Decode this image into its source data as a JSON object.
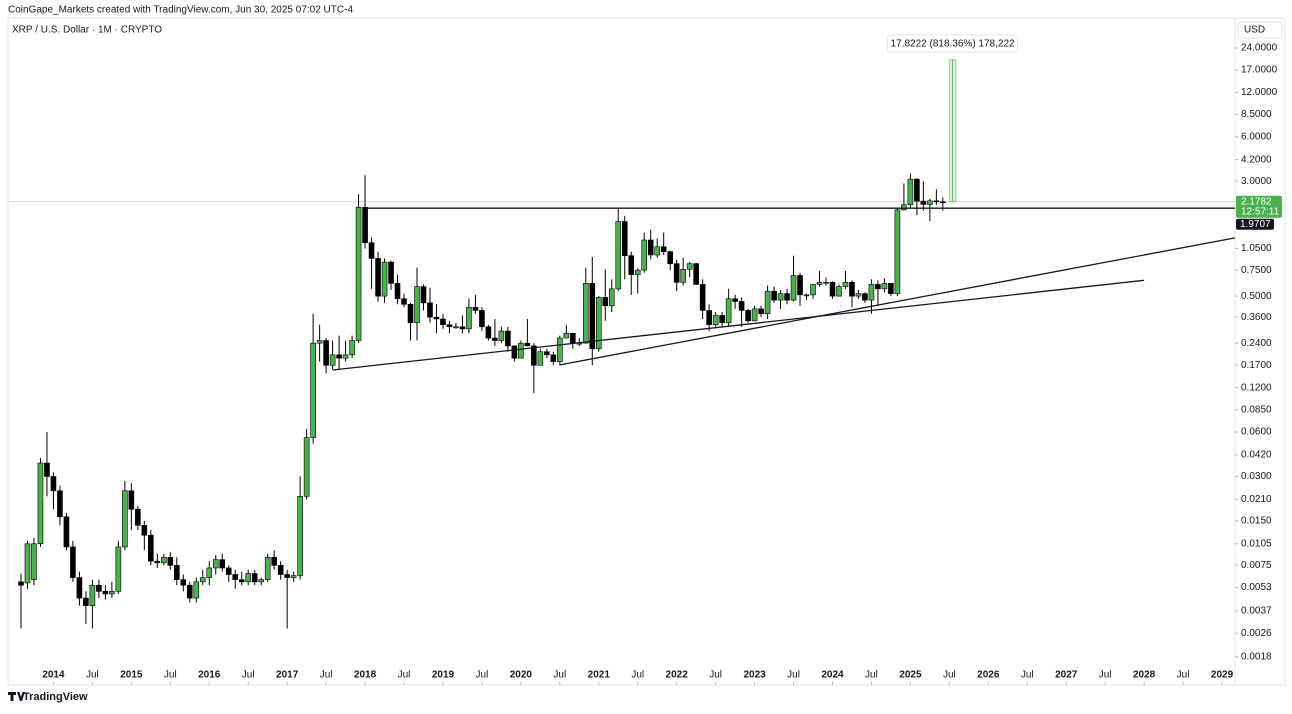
{
  "credit": "CoinGape_Markets created with TradingView.com, Jun 30, 2025 07:02 UTC-4",
  "footer": "TradingView",
  "chart_data": {
    "type": "candlestick",
    "title": "XRP / U.S. Dollar · 1M · CRYPTO",
    "y_label": "USD",
    "log_scale": true,
    "up_color": "#4caf50",
    "down_color": "#000000",
    "xlim": [
      "2013-06",
      "2029-03"
    ],
    "ylim": [
      0.00116,
      38.3
    ],
    "xticks": [
      {
        "value": "2014-01",
        "label": "2014"
      },
      {
        "value": "2014-07",
        "label": "Jul"
      },
      {
        "value": "2015-01",
        "label": "2015"
      },
      {
        "value": "2015-07",
        "label": "Jul"
      },
      {
        "value": "2016-01",
        "label": "2016"
      },
      {
        "value": "2016-07",
        "label": "Jul"
      },
      {
        "value": "2017-01",
        "label": "2017"
      },
      {
        "value": "2017-07",
        "label": "Jul"
      },
      {
        "value": "2018-01",
        "label": "2018"
      },
      {
        "value": "2018-07",
        "label": "Jul"
      },
      {
        "value": "2019-01",
        "label": "2019"
      },
      {
        "value": "2019-07",
        "label": "Jul"
      },
      {
        "value": "2020-01",
        "label": "2020"
      },
      {
        "value": "2020-07",
        "label": "Jul"
      },
      {
        "value": "2021-01",
        "label": "2021"
      },
      {
        "value": "2021-07",
        "label": "Jul"
      },
      {
        "value": "2022-01",
        "label": "2022"
      },
      {
        "value": "2022-07",
        "label": "Jul"
      },
      {
        "value": "2023-01",
        "label": "2023"
      },
      {
        "value": "2023-07",
        "label": "Jul"
      },
      {
        "value": "2024-01",
        "label": "2024"
      },
      {
        "value": "2024-07",
        "label": "Jul"
      },
      {
        "value": "2025-01",
        "label": "2025"
      },
      {
        "value": "2025-07",
        "label": "Jul"
      },
      {
        "value": "2026-01",
        "label": "2026"
      },
      {
        "value": "2026-07",
        "label": "Jul"
      },
      {
        "value": "2027-01",
        "label": "2027"
      },
      {
        "value": "2027-07",
        "label": "Jul"
      },
      {
        "value": "2028-01",
        "label": "2028"
      },
      {
        "value": "2028-07",
        "label": "Jul"
      },
      {
        "value": "2029-01",
        "label": "2029"
      }
    ],
    "yticks": [
      {
        "value": 24,
        "label": "24.0000"
      },
      {
        "value": 17,
        "label": "17.0000"
      },
      {
        "value": 12,
        "label": "12.0000"
      },
      {
        "value": 8.5,
        "label": "8.5000"
      },
      {
        "value": 6,
        "label": "6.0000"
      },
      {
        "value": 4.2,
        "label": "4.2000"
      },
      {
        "value": 3,
        "label": "3.0000"
      },
      {
        "value": 1.05,
        "label": "1.0500"
      },
      {
        "value": 0.75,
        "label": "0.7500"
      },
      {
        "value": 0.5,
        "label": "0.5000"
      },
      {
        "value": 0.36,
        "label": "0.3600"
      },
      {
        "value": 0.24,
        "label": "0.2400"
      },
      {
        "value": 0.17,
        "label": "0.1700"
      },
      {
        "value": 0.12,
        "label": "0.1200"
      },
      {
        "value": 0.085,
        "label": "0.0850"
      },
      {
        "value": 0.06,
        "label": "0.0600"
      },
      {
        "value": 0.042,
        "label": "0.0420"
      },
      {
        "value": 0.03,
        "label": "0.0300"
      },
      {
        "value": 0.021,
        "label": "0.0210"
      },
      {
        "value": 0.015,
        "label": "0.0150"
      },
      {
        "value": 0.0105,
        "label": "0.0105"
      },
      {
        "value": 0.0075,
        "label": "0.0075"
      },
      {
        "value": 0.0053,
        "label": "0.0053"
      },
      {
        "value": 0.0037,
        "label": "0.0037"
      },
      {
        "value": 0.0026,
        "label": "0.0026"
      },
      {
        "value": 0.0018,
        "label": "0.0018"
      }
    ],
    "last_price": 2.1782,
    "countdown": "12:57:11",
    "level": 1.9707,
    "trend_lines": [
      {
        "x": [
          "2018-01",
          "2029-03"
        ],
        "y": [
          1.9707,
          1.9707
        ]
      },
      {
        "x": [
          "2017-08",
          "2028-01"
        ],
        "y": [
          0.158,
          0.64
        ]
      },
      {
        "x": [
          "2020-07",
          "2029-03"
        ],
        "y": [
          0.171,
          1.24
        ]
      }
    ],
    "measure": {
      "label": "17.8222 (818.36%) 178,222",
      "x": [
        "2025-07",
        "2025-08"
      ],
      "y": [
        2.1782,
        20
      ]
    },
    "x": [
      "2013-08",
      "2013-09",
      "2013-10",
      "2013-11",
      "2013-12",
      "2014-01",
      "2014-02",
      "2014-03",
      "2014-04",
      "2014-05",
      "2014-06",
      "2014-07",
      "2014-08",
      "2014-09",
      "2014-10",
      "2014-11",
      "2014-12",
      "2015-01",
      "2015-02",
      "2015-03",
      "2015-04",
      "2015-05",
      "2015-06",
      "2015-07",
      "2015-08",
      "2015-09",
      "2015-10",
      "2015-11",
      "2015-12",
      "2016-01",
      "2016-02",
      "2016-03",
      "2016-04",
      "2016-05",
      "2016-06",
      "2016-07",
      "2016-08",
      "2016-09",
      "2016-10",
      "2016-11",
      "2016-12",
      "2017-01",
      "2017-02",
      "2017-03",
      "2017-04",
      "2017-05",
      "2017-06",
      "2017-07",
      "2017-08",
      "2017-09",
      "2017-10",
      "2017-11",
      "2017-12",
      "2018-01",
      "2018-02",
      "2018-03",
      "2018-04",
      "2018-05",
      "2018-06",
      "2018-07",
      "2018-08",
      "2018-09",
      "2018-10",
      "2018-11",
      "2018-12",
      "2019-01",
      "2019-02",
      "2019-03",
      "2019-04",
      "2019-05",
      "2019-06",
      "2019-07",
      "2019-08",
      "2019-09",
      "2019-10",
      "2019-11",
      "2019-12",
      "2020-01",
      "2020-02",
      "2020-03",
      "2020-04",
      "2020-05",
      "2020-06",
      "2020-07",
      "2020-08",
      "2020-09",
      "2020-10",
      "2020-11",
      "2020-12",
      "2021-01",
      "2021-02",
      "2021-03",
      "2021-04",
      "2021-05",
      "2021-06",
      "2021-07",
      "2021-08",
      "2021-09",
      "2021-10",
      "2021-11",
      "2021-12",
      "2022-01",
      "2022-02",
      "2022-03",
      "2022-04",
      "2022-05",
      "2022-06",
      "2022-07",
      "2022-08",
      "2022-09",
      "2022-10",
      "2022-11",
      "2022-12",
      "2023-01",
      "2023-02",
      "2023-03",
      "2023-04",
      "2023-05",
      "2023-06",
      "2023-07",
      "2023-08",
      "2023-09",
      "2023-10",
      "2023-11",
      "2023-12",
      "2024-01",
      "2024-02",
      "2024-03",
      "2024-04",
      "2024-05",
      "2024-06",
      "2024-07",
      "2024-08",
      "2024-09",
      "2024-10",
      "2024-11",
      "2024-12",
      "2025-01",
      "2025-02",
      "2025-03",
      "2025-04",
      "2025-05",
      "2025-06"
    ],
    "ohlc": [
      [
        0.0058,
        0.0066,
        0.0028,
        0.0055
      ],
      [
        0.0057,
        0.011,
        0.0052,
        0.0105
      ],
      [
        0.006,
        0.0115,
        0.0055,
        0.0105
      ],
      [
        0.0105,
        0.04,
        0.01,
        0.037
      ],
      [
        0.037,
        0.06,
        0.022,
        0.03
      ],
      [
        0.03,
        0.032,
        0.018,
        0.024
      ],
      [
        0.024,
        0.026,
        0.014,
        0.016
      ],
      [
        0.016,
        0.017,
        0.0095,
        0.01
      ],
      [
        0.01,
        0.011,
        0.0058,
        0.0062
      ],
      [
        0.0062,
        0.0068,
        0.004,
        0.0045
      ],
      [
        0.0045,
        0.005,
        0.003,
        0.004
      ],
      [
        0.004,
        0.006,
        0.0028,
        0.0055
      ],
      [
        0.0055,
        0.006,
        0.0045,
        0.005
      ],
      [
        0.005,
        0.0055,
        0.0044,
        0.0048
      ],
      [
        0.0048,
        0.0058,
        0.0045,
        0.005
      ],
      [
        0.005,
        0.011,
        0.0048,
        0.01
      ],
      [
        0.01,
        0.028,
        0.0095,
        0.024
      ],
      [
        0.024,
        0.027,
        0.013,
        0.018
      ],
      [
        0.018,
        0.019,
        0.013,
        0.014
      ],
      [
        0.014,
        0.015,
        0.0095,
        0.012
      ],
      [
        0.012,
        0.013,
        0.0075,
        0.008
      ],
      [
        0.008,
        0.009,
        0.0072,
        0.0078
      ],
      [
        0.0078,
        0.009,
        0.0075,
        0.0085
      ],
      [
        0.0085,
        0.0092,
        0.007,
        0.0075
      ],
      [
        0.0075,
        0.0085,
        0.0055,
        0.006
      ],
      [
        0.006,
        0.0065,
        0.005,
        0.0055
      ],
      [
        0.0055,
        0.0058,
        0.0042,
        0.0045
      ],
      [
        0.0045,
        0.0062,
        0.0042,
        0.0058
      ],
      [
        0.0058,
        0.007,
        0.0055,
        0.0062
      ],
      [
        0.0062,
        0.008,
        0.0055,
        0.0072
      ],
      [
        0.0072,
        0.0088,
        0.0065,
        0.0082
      ],
      [
        0.0082,
        0.009,
        0.0068,
        0.0072
      ],
      [
        0.0072,
        0.0075,
        0.0058,
        0.0065
      ],
      [
        0.0065,
        0.007,
        0.0052,
        0.006
      ],
      [
        0.006,
        0.0068,
        0.0055,
        0.0058
      ],
      [
        0.0058,
        0.007,
        0.0055,
        0.0066
      ],
      [
        0.0066,
        0.007,
        0.0055,
        0.0058
      ],
      [
        0.0058,
        0.0062,
        0.0055,
        0.006
      ],
      [
        0.006,
        0.009,
        0.0058,
        0.0085
      ],
      [
        0.0085,
        0.0095,
        0.007,
        0.0075
      ],
      [
        0.0075,
        0.008,
        0.006,
        0.0065
      ],
      [
        0.0065,
        0.007,
        0.0028,
        0.0062
      ],
      [
        0.0062,
        0.0068,
        0.0058,
        0.0064
      ],
      [
        0.0064,
        0.03,
        0.006,
        0.022
      ],
      [
        0.022,
        0.063,
        0.021,
        0.055
      ],
      [
        0.055,
        0.38,
        0.05,
        0.24
      ],
      [
        0.24,
        0.32,
        0.18,
        0.25
      ],
      [
        0.25,
        0.26,
        0.15,
        0.17
      ],
      [
        0.17,
        0.25,
        0.16,
        0.2
      ],
      [
        0.2,
        0.27,
        0.16,
        0.19
      ],
      [
        0.19,
        0.25,
        0.18,
        0.2
      ],
      [
        0.2,
        0.27,
        0.19,
        0.25
      ],
      [
        0.25,
        2.45,
        0.24,
        2.0
      ],
      [
        2.0,
        3.3,
        1.05,
        1.15
      ],
      [
        1.15,
        1.25,
        0.56,
        0.9
      ],
      [
        0.9,
        1.0,
        0.46,
        0.5
      ],
      [
        0.5,
        0.9,
        0.45,
        0.85
      ],
      [
        0.85,
        0.87,
        0.55,
        0.61
      ],
      [
        0.61,
        0.7,
        0.44,
        0.48
      ],
      [
        0.48,
        0.52,
        0.42,
        0.44
      ],
      [
        0.44,
        0.45,
        0.25,
        0.33
      ],
      [
        0.33,
        0.78,
        0.25,
        0.58
      ],
      [
        0.58,
        0.6,
        0.4,
        0.45
      ],
      [
        0.45,
        0.57,
        0.33,
        0.36
      ],
      [
        0.36,
        0.44,
        0.28,
        0.35
      ],
      [
        0.35,
        0.38,
        0.3,
        0.32
      ],
      [
        0.32,
        0.34,
        0.28,
        0.31
      ],
      [
        0.31,
        0.33,
        0.3,
        0.31
      ],
      [
        0.31,
        0.37,
        0.28,
        0.3
      ],
      [
        0.3,
        0.48,
        0.28,
        0.42
      ],
      [
        0.42,
        0.51,
        0.38,
        0.4
      ],
      [
        0.4,
        0.42,
        0.29,
        0.31
      ],
      [
        0.31,
        0.32,
        0.25,
        0.26
      ],
      [
        0.26,
        0.35,
        0.23,
        0.25
      ],
      [
        0.25,
        0.31,
        0.24,
        0.29
      ],
      [
        0.29,
        0.31,
        0.21,
        0.23
      ],
      [
        0.23,
        0.23,
        0.18,
        0.19
      ],
      [
        0.19,
        0.25,
        0.19,
        0.24
      ],
      [
        0.24,
        0.35,
        0.23,
        0.23
      ],
      [
        0.23,
        0.24,
        0.11,
        0.17
      ],
      [
        0.17,
        0.22,
        0.17,
        0.21
      ],
      [
        0.21,
        0.22,
        0.19,
        0.2
      ],
      [
        0.2,
        0.21,
        0.17,
        0.18
      ],
      [
        0.18,
        0.27,
        0.17,
        0.26
      ],
      [
        0.26,
        0.32,
        0.26,
        0.28
      ],
      [
        0.28,
        0.28,
        0.22,
        0.24
      ],
      [
        0.24,
        0.26,
        0.23,
        0.24
      ],
      [
        0.24,
        0.78,
        0.24,
        0.61
      ],
      [
        0.61,
        0.92,
        0.17,
        0.22
      ],
      [
        0.22,
        0.5,
        0.21,
        0.49
      ],
      [
        0.49,
        0.76,
        0.34,
        0.43
      ],
      [
        0.43,
        0.65,
        0.39,
        0.56
      ],
      [
        0.56,
        1.96,
        0.54,
        1.6
      ],
      [
        1.6,
        1.75,
        0.65,
        0.94
      ],
      [
        0.94,
        1.0,
        0.51,
        0.7
      ],
      [
        0.7,
        0.77,
        0.52,
        0.75
      ],
      [
        0.75,
        1.35,
        0.72,
        1.2
      ],
      [
        1.2,
        1.41,
        0.89,
        0.95
      ],
      [
        0.95,
        1.23,
        0.91,
        1.08
      ],
      [
        1.08,
        1.35,
        0.95,
        1.0
      ],
      [
        1.0,
        1.02,
        0.75,
        0.83
      ],
      [
        0.83,
        0.88,
        0.54,
        0.62
      ],
      [
        0.62,
        0.91,
        0.59,
        0.76
      ],
      [
        0.76,
        0.85,
        0.67,
        0.83
      ],
      [
        0.83,
        0.84,
        0.6,
        0.6
      ],
      [
        0.6,
        0.65,
        0.35,
        0.4
      ],
      [
        0.4,
        0.44,
        0.29,
        0.32
      ],
      [
        0.32,
        0.39,
        0.31,
        0.37
      ],
      [
        0.37,
        0.39,
        0.31,
        0.33
      ],
      [
        0.33,
        0.56,
        0.31,
        0.48
      ],
      [
        0.48,
        0.51,
        0.41,
        0.46
      ],
      [
        0.46,
        0.49,
        0.31,
        0.4
      ],
      [
        0.4,
        0.41,
        0.33,
        0.34
      ],
      [
        0.34,
        0.43,
        0.34,
        0.41
      ],
      [
        0.41,
        0.43,
        0.36,
        0.38
      ],
      [
        0.38,
        0.59,
        0.35,
        0.54
      ],
      [
        0.54,
        0.58,
        0.45,
        0.47
      ],
      [
        0.47,
        0.55,
        0.41,
        0.52
      ],
      [
        0.52,
        0.56,
        0.44,
        0.47
      ],
      [
        0.47,
        0.94,
        0.46,
        0.69
      ],
      [
        0.69,
        0.72,
        0.43,
        0.51
      ],
      [
        0.51,
        0.52,
        0.47,
        0.51
      ],
      [
        0.51,
        0.6,
        0.48,
        0.6
      ],
      [
        0.6,
        0.74,
        0.58,
        0.62
      ],
      [
        0.62,
        0.67,
        0.59,
        0.62
      ],
      [
        0.62,
        0.63,
        0.48,
        0.5
      ],
      [
        0.5,
        0.6,
        0.5,
        0.58
      ],
      [
        0.58,
        0.74,
        0.56,
        0.62
      ],
      [
        0.62,
        0.64,
        0.42,
        0.5
      ],
      [
        0.5,
        0.55,
        0.48,
        0.52
      ],
      [
        0.52,
        0.53,
        0.45,
        0.47
      ],
      [
        0.47,
        0.65,
        0.38,
        0.6
      ],
      [
        0.6,
        0.64,
        0.43,
        0.56
      ],
      [
        0.56,
        0.66,
        0.53,
        0.61
      ],
      [
        0.61,
        0.61,
        0.5,
        0.52
      ],
      [
        0.52,
        1.98,
        0.5,
        1.92
      ],
      [
        1.92,
        2.9,
        1.9,
        2.08
      ],
      [
        2.08,
        3.4,
        1.96,
        3.1
      ],
      [
        3.1,
        3.15,
        1.77,
        2.2
      ],
      [
        2.2,
        3.0,
        1.9,
        2.09
      ],
      [
        2.09,
        2.29,
        1.61,
        2.21
      ],
      [
        2.21,
        2.65,
        2.08,
        2.18
      ],
      [
        2.18,
        2.33,
        1.9,
        2.1782
      ]
    ]
  }
}
